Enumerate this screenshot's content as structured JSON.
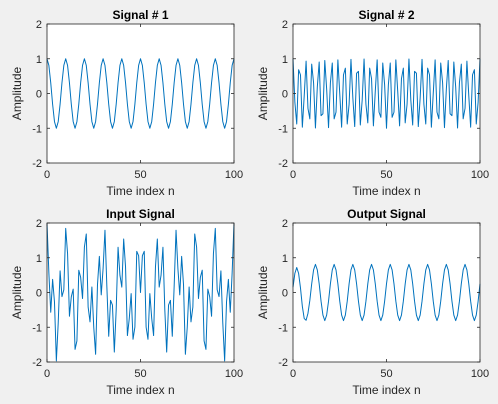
{
  "figure": {
    "background": "#f0f0f0"
  },
  "chart_data": [
    {
      "type": "line",
      "title": "Signal # 1",
      "xlabel": "Time index n",
      "ylabel": "Amplitude",
      "xlim": [
        0,
        100
      ],
      "ylim": [
        -2,
        2
      ],
      "xticks": [
        0,
        50,
        100
      ],
      "yticks": [
        -2,
        -1,
        0,
        1,
        2
      ],
      "grid": false,
      "series": [
        {
          "color": "#0072bd",
          "x": [
            0,
            1,
            2,
            3,
            4,
            5,
            6,
            7,
            8,
            9,
            10,
            11,
            12,
            13,
            14,
            15,
            16,
            17,
            18,
            19,
            20,
            21,
            22,
            23,
            24,
            25,
            26,
            27,
            28,
            29,
            30,
            31,
            32,
            33,
            34,
            35,
            36,
            37,
            38,
            39,
            40,
            41,
            42,
            43,
            44,
            45,
            46,
            47,
            48,
            49,
            50,
            51,
            52,
            53,
            54,
            55,
            56,
            57,
            58,
            59,
            60,
            61,
            62,
            63,
            64,
            65,
            66,
            67,
            68,
            69,
            70,
            71,
            72,
            73,
            74,
            75,
            76,
            77,
            78,
            79,
            80,
            81,
            82,
            83,
            84,
            85,
            86,
            87,
            88,
            89,
            90,
            91,
            92,
            93,
            94,
            95,
            96,
            97,
            98,
            99,
            100
          ],
          "y": [
            1.0,
            0.809,
            0.309,
            -0.309,
            -0.809,
            -1.0,
            -0.809,
            -0.309,
            0.309,
            0.809,
            1.0,
            0.809,
            0.309,
            -0.309,
            -0.809,
            -1.0,
            -0.809,
            -0.309,
            0.309,
            0.809,
            1.0,
            0.809,
            0.309,
            -0.309,
            -0.809,
            -1.0,
            -0.809,
            -0.309,
            0.309,
            0.809,
            1.0,
            0.809,
            0.309,
            -0.309,
            -0.809,
            -1.0,
            -0.809,
            -0.309,
            0.309,
            0.809,
            1.0,
            0.809,
            0.309,
            -0.309,
            -0.809,
            -1.0,
            -0.809,
            -0.309,
            0.309,
            0.809,
            1.0,
            0.809,
            0.309,
            -0.309,
            -0.809,
            -1.0,
            -0.809,
            -0.309,
            0.309,
            0.809,
            1.0,
            0.809,
            0.309,
            -0.309,
            -0.809,
            -1.0,
            -0.809,
            -0.309,
            0.309,
            0.809,
            1.0,
            0.809,
            0.309,
            -0.309,
            -0.809,
            -1.0,
            -0.809,
            -0.309,
            0.309,
            0.809,
            1.0,
            0.809,
            0.309,
            -0.309,
            -0.809,
            -1.0,
            -0.809,
            -0.309,
            0.309,
            0.809,
            1.0,
            0.809,
            0.309,
            -0.309,
            -0.809,
            -1.0,
            -0.809,
            -0.309,
            0.309,
            0.809,
            1.0
          ]
        }
      ]
    },
    {
      "type": "line",
      "title": "Signal # 2",
      "xlabel": "Time index n",
      "ylabel": "Amplitude",
      "xlim": [
        0,
        100
      ],
      "ylim": [
        -2,
        2
      ],
      "xticks": [
        0,
        50,
        100
      ],
      "yticks": [
        -2,
        -1,
        0,
        1,
        2
      ],
      "grid": false,
      "series": [
        {
          "color": "#0072bd",
          "x": [
            0,
            1,
            2,
            3,
            4,
            5,
            6,
            7,
            8,
            9,
            10,
            11,
            12,
            13,
            14,
            15,
            16,
            17,
            18,
            19,
            20,
            21,
            22,
            23,
            24,
            25,
            26,
            27,
            28,
            29,
            30,
            31,
            32,
            33,
            34,
            35,
            36,
            37,
            38,
            39,
            40,
            41,
            42,
            43,
            44,
            45,
            46,
            47,
            48,
            49,
            50,
            51,
            52,
            53,
            54,
            55,
            56,
            57,
            58,
            59,
            60,
            61,
            62,
            63,
            64,
            65,
            66,
            67,
            68,
            69,
            70,
            71,
            72,
            73,
            74,
            75,
            76,
            77,
            78,
            79,
            80,
            81,
            82,
            83,
            84,
            85,
            86,
            87,
            88,
            89,
            90,
            91,
            92,
            93,
            94,
            95,
            96,
            97,
            98,
            99,
            100
          ],
          "y": [
            1.0,
            -0.249,
            -0.876,
            0.685,
            0.536,
            -0.969,
            -0.063,
            0.93,
            -0.426,
            -0.729,
            0.844,
            0.309,
            -0.992,
            0.187,
            0.905,
            -0.637,
            -0.583,
            0.951,
            0.125,
            -0.982,
            0.309,
            0.876,
            -0.729,
            -0.536,
            0.969,
            0.0,
            -0.969,
            0.536,
            0.729,
            -0.876,
            -0.309,
            0.982,
            -0.125,
            -0.951,
            0.583,
            0.637,
            -0.905,
            -0.187,
            0.992,
            -0.309,
            -0.844,
            0.729,
            0.426,
            -0.93,
            0.063,
            0.969,
            -0.536,
            -0.685,
            0.876,
            0.249,
            -1.0,
            0.249,
            0.876,
            -0.685,
            -0.536,
            0.969,
            0.063,
            -0.93,
            0.426,
            0.729,
            -0.844,
            -0.309,
            0.992,
            -0.187,
            -0.905,
            0.637,
            0.583,
            -0.951,
            -0.125,
            0.982,
            -0.309,
            -0.876,
            0.729,
            0.536,
            -0.969,
            0.0,
            0.969,
            -0.536,
            -0.729,
            0.876,
            0.309,
            -0.982,
            0.125,
            0.951,
            -0.583,
            -0.637,
            0.905,
            0.187,
            -0.992,
            0.309,
            0.844,
            -0.729,
            -0.426,
            0.93,
            -0.063,
            -0.969,
            0.536,
            0.685,
            -0.876,
            -0.249,
            1.0
          ]
        }
      ]
    },
    {
      "type": "line",
      "title": "Input Signal",
      "xlabel": "Time index n",
      "ylabel": "Amplitude",
      "xlim": [
        0,
        100
      ],
      "ylim": [
        -2,
        2
      ],
      "xticks": [
        0,
        50,
        100
      ],
      "yticks": [
        -2,
        -1,
        0,
        1,
        2
      ],
      "grid": false,
      "series": [
        {
          "color": "#0072bd",
          "x": [
            0,
            1,
            2,
            3,
            4,
            5,
            6,
            7,
            8,
            9,
            10,
            11,
            12,
            13,
            14,
            15,
            16,
            17,
            18,
            19,
            20,
            21,
            22,
            23,
            24,
            25,
            26,
            27,
            28,
            29,
            30,
            31,
            32,
            33,
            34,
            35,
            36,
            37,
            38,
            39,
            40,
            41,
            42,
            43,
            44,
            45,
            46,
            47,
            48,
            49,
            50,
            51,
            52,
            53,
            54,
            55,
            56,
            57,
            58,
            59,
            60,
            61,
            62,
            63,
            64,
            65,
            66,
            67,
            68,
            69,
            70,
            71,
            72,
            73,
            74,
            75,
            76,
            77,
            78,
            79,
            80,
            81,
            82,
            83,
            84,
            85,
            86,
            87,
            88,
            89,
            90,
            91,
            92,
            93,
            94,
            95,
            96,
            97,
            98,
            99,
            100
          ],
          "y": [
            2.0,
            0.56,
            -0.567,
            0.376,
            -0.273,
            -1.969,
            -0.872,
            0.621,
            -0.117,
            0.08,
            1.844,
            1.118,
            -0.683,
            -0.122,
            0.096,
            -1.637,
            -1.392,
            0.642,
            0.434,
            -0.173,
            1.309,
            1.685,
            -0.42,
            -0.845,
            0.16,
            -1.0,
            -1.778,
            0.227,
            1.038,
            -0.067,
            0.691,
            1.791,
            0.184,
            -1.26,
            -0.226,
            -0.363,
            -1.714,
            -0.496,
            1.301,
            0.5,
            0.156,
            1.538,
            0.735,
            -1.239,
            -0.746,
            -0.031,
            -1.345,
            -0.994,
            1.185,
            1.058,
            0.0,
            1.058,
            1.185,
            -0.994,
            -1.345,
            -0.031,
            -0.746,
            -1.239,
            0.735,
            1.538,
            0.156,
            0.5,
            1.301,
            -0.496,
            -1.714,
            -0.363,
            -0.226,
            -1.26,
            0.184,
            1.791,
            0.691,
            -0.067,
            1.038,
            0.227,
            -1.778,
            -1.0,
            0.16,
            -0.845,
            -0.42,
            1.685,
            1.309,
            -0.173,
            0.434,
            0.642,
            -1.392,
            -1.637,
            0.096,
            -0.122,
            -0.683,
            1.118,
            1.844,
            0.08,
            -0.117,
            0.621,
            -0.872,
            -1.969,
            -0.273,
            0.376,
            -0.567,
            0.56,
            2.0
          ]
        }
      ]
    },
    {
      "type": "line",
      "title": "Output Signal",
      "xlabel": "Time index n",
      "ylabel": "Amplitude",
      "xlim": [
        0,
        100
      ],
      "ylim": [
        -2,
        2
      ],
      "xticks": [
        0,
        50,
        100
      ],
      "yticks": [
        -2,
        -1,
        0,
        1,
        2
      ],
      "grid": false,
      "series": [
        {
          "color": "#0072bd",
          "x": [
            0,
            1,
            2,
            3,
            4,
            5,
            6,
            7,
            8,
            9,
            10,
            11,
            12,
            13,
            14,
            15,
            16,
            17,
            18,
            19,
            20,
            21,
            22,
            23,
            24,
            25,
            26,
            27,
            28,
            29,
            30,
            31,
            32,
            33,
            34,
            35,
            36,
            37,
            38,
            39,
            40,
            41,
            42,
            43,
            44,
            45,
            46,
            47,
            48,
            49,
            50,
            51,
            52,
            53,
            54,
            55,
            56,
            57,
            58,
            59,
            60,
            61,
            62,
            63,
            64,
            65,
            66,
            67,
            68,
            69,
            70,
            71,
            72,
            73,
            74,
            75,
            76,
            77,
            78,
            79,
            80,
            81,
            82,
            83,
            84,
            85,
            86,
            87,
            88,
            89,
            90,
            91,
            92,
            93,
            94,
            95,
            96,
            97,
            98,
            99,
            100
          ],
          "y": [
            0.15,
            0.55,
            0.72,
            0.55,
            0.13,
            -0.4,
            -0.75,
            -0.8,
            -0.6,
            -0.23,
            0.25,
            0.65,
            0.81,
            0.65,
            0.25,
            -0.25,
            -0.65,
            -0.81,
            -0.65,
            -0.25,
            0.25,
            0.65,
            0.81,
            0.65,
            0.25,
            -0.25,
            -0.65,
            -0.81,
            -0.65,
            -0.25,
            0.25,
            0.65,
            0.81,
            0.65,
            0.25,
            -0.25,
            -0.65,
            -0.81,
            -0.65,
            -0.25,
            0.25,
            0.65,
            0.81,
            0.65,
            0.25,
            -0.25,
            -0.65,
            -0.81,
            -0.65,
            -0.25,
            0.25,
            0.65,
            0.81,
            0.65,
            0.25,
            -0.25,
            -0.65,
            -0.81,
            -0.65,
            -0.25,
            0.25,
            0.65,
            0.81,
            0.65,
            0.25,
            -0.25,
            -0.65,
            -0.81,
            -0.65,
            -0.25,
            0.25,
            0.65,
            0.81,
            0.65,
            0.25,
            -0.25,
            -0.65,
            -0.81,
            -0.65,
            -0.25,
            0.25,
            0.65,
            0.81,
            0.65,
            0.25,
            -0.25,
            -0.65,
            -0.81,
            -0.65,
            -0.25,
            0.25,
            0.65,
            0.81,
            0.65,
            0.25,
            -0.25,
            -0.65,
            -0.81,
            -0.65,
            -0.25,
            0.25
          ]
        }
      ]
    }
  ]
}
